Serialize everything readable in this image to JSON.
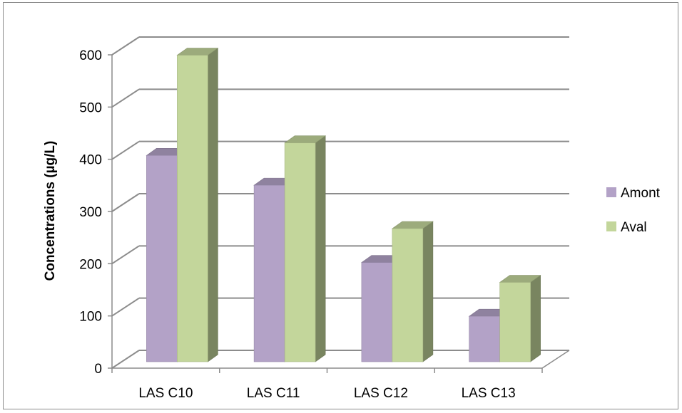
{
  "chart_data": {
    "type": "bar",
    "categories": [
      "LAS C10",
      "LAS C11",
      "LAS C12",
      "LAS C13"
    ],
    "series": [
      {
        "name": "Amont",
        "values": [
          395,
          338,
          190,
          87
        ],
        "color": "#b3a2c7"
      },
      {
        "name": "Aval",
        "values": [
          587,
          419,
          255,
          152
        ],
        "color": "#c3d69b"
      }
    ],
    "ylabel": "Concentrations (µg/L)",
    "xlabel": "",
    "ylim": [
      0,
      600
    ],
    "yticks": [
      "0",
      "100",
      "200",
      "300",
      "400",
      "500",
      "600"
    ],
    "grid": true,
    "three_d": true,
    "legend_position": "right"
  }
}
